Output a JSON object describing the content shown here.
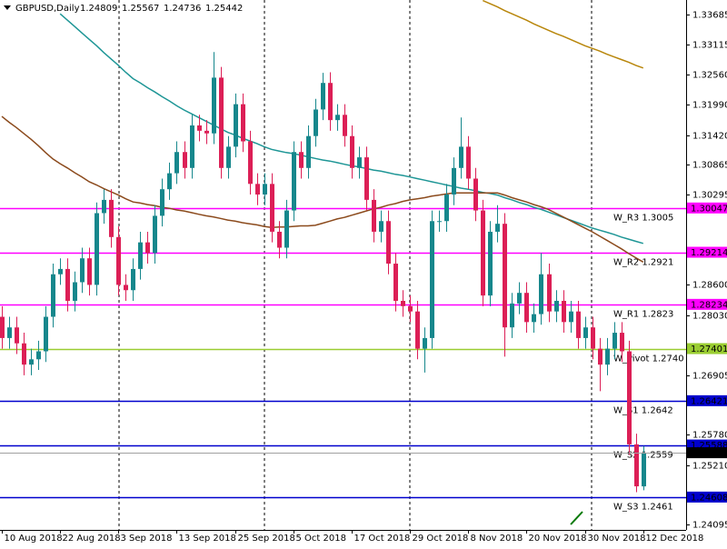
{
  "chart_data": {
    "type": "candlestick",
    "symbol": "GBPUSD,Daily",
    "categories": [
      "10 Aug 2018",
      null,
      null,
      null,
      null,
      null,
      null,
      null,
      "22 Aug 2018",
      null,
      null,
      null,
      null,
      null,
      null,
      null,
      "3 Sep 2018",
      null,
      null,
      null,
      null,
      null,
      null,
      null,
      "13 Sep 2018",
      null,
      null,
      null,
      null,
      null,
      null,
      null,
      "25 Sep 2018",
      null,
      null,
      null,
      null,
      null,
      null,
      null,
      "5 Oct 2018",
      null,
      null,
      null,
      null,
      null,
      null,
      null,
      "17 Oct 2018",
      null,
      null,
      null,
      null,
      null,
      null,
      null,
      "29 Oct 2018",
      null,
      null,
      null,
      null,
      null,
      null,
      null,
      "8 Nov 2018",
      null,
      null,
      null,
      null,
      null,
      null,
      null,
      "20 Nov 2018",
      null,
      null,
      null,
      null,
      null,
      null,
      null,
      "30 Nov 2018",
      null,
      null,
      null,
      null,
      null,
      null,
      null,
      "12 Dec 2018"
    ],
    "open": [
      1.28,
      1.276,
      1.278,
      1.275,
      1.271,
      1.272,
      1.2735,
      1.28,
      1.288,
      1.289,
      1.283,
      1.2865,
      1.291,
      1.286,
      1.2995,
      1.302,
      1.295,
      1.286,
      1.285,
      1.289,
      1.294,
      1.292,
      1.299,
      1.304,
      1.307,
      1.311,
      1.308,
      1.316,
      1.315,
      1.3145,
      1.325,
      1.308,
      1.312,
      1.32,
      1.313,
      1.305,
      1.303,
      1.305,
      1.296,
      1.293,
      1.3,
      1.311,
      1.308,
      1.314,
      1.319,
      1.324,
      1.317,
      1.318,
      1.314,
      1.308,
      1.31,
      1.302,
      1.296,
      1.298,
      1.29,
      1.283,
      1.282,
      1.281,
      1.274,
      1.276,
      1.298,
      1.298,
      1.303,
      1.308,
      1.312,
      1.306,
      1.3,
      1.284,
      1.296,
      1.2975,
      1.278,
      1.2825,
      1.2845,
      1.279,
      1.2805,
      1.288,
      1.281,
      1.283,
      1.279,
      1.281,
      1.276,
      1.278,
      1.274,
      1.271,
      1.274,
      1.277,
      1.2735,
      1.256,
      1.24809
    ],
    "high": [
      1.282,
      1.28,
      1.28,
      1.277,
      1.274,
      1.2755,
      1.282,
      1.29,
      1.291,
      1.291,
      1.2885,
      1.293,
      1.293,
      1.3015,
      1.304,
      1.304,
      1.297,
      1.288,
      1.291,
      1.296,
      1.296,
      1.301,
      1.306,
      1.309,
      1.313,
      1.313,
      1.318,
      1.318,
      1.317,
      1.3298,
      1.327,
      1.314,
      1.322,
      1.322,
      1.315,
      1.307,
      1.307,
      1.307,
      1.298,
      1.302,
      1.313,
      1.313,
      1.316,
      1.321,
      1.3259,
      1.326,
      1.32,
      1.32,
      1.316,
      1.312,
      1.312,
      1.304,
      1.3,
      1.3,
      1.292,
      1.285,
      1.284,
      1.283,
      1.278,
      1.3,
      1.3,
      1.305,
      1.31,
      1.3175,
      1.314,
      1.308,
      1.302,
      1.298,
      1.301,
      1.2995,
      1.2845,
      1.2865,
      1.2865,
      1.2825,
      1.292,
      1.29,
      1.285,
      1.285,
      1.283,
      1.283,
      1.28,
      1.28,
      1.276,
      1.276,
      1.279,
      1.279,
      1.2755,
      1.258,
      1.25567
    ],
    "low": [
      1.274,
      1.274,
      1.273,
      1.269,
      1.269,
      1.27,
      1.2715,
      1.278,
      1.286,
      1.281,
      1.281,
      1.2845,
      1.284,
      1.284,
      1.2975,
      1.293,
      1.284,
      1.283,
      1.283,
      1.287,
      1.29,
      1.29,
      1.297,
      1.302,
      1.305,
      1.306,
      1.306,
      1.313,
      1.3125,
      1.3125,
      1.306,
      1.306,
      1.31,
      1.311,
      1.303,
      1.301,
      1.301,
      1.294,
      1.291,
      1.291,
      1.298,
      1.306,
      1.306,
      1.312,
      1.317,
      1.315,
      1.315,
      1.312,
      1.306,
      1.306,
      1.3,
      1.294,
      1.294,
      1.288,
      1.281,
      1.28,
      1.279,
      1.272,
      1.2695,
      1.274,
      1.296,
      1.296,
      1.301,
      1.306,
      1.304,
      1.298,
      1.282,
      1.282,
      1.294,
      1.2725,
      1.276,
      1.2805,
      1.277,
      1.277,
      1.2785,
      1.279,
      1.279,
      1.277,
      1.277,
      1.274,
      1.274,
      1.272,
      1.266,
      1.269,
      1.272,
      1.2715,
      1.254,
      1.247,
      1.24736
    ],
    "close": [
      1.276,
      1.278,
      1.275,
      1.271,
      1.272,
      1.2735,
      1.28,
      1.288,
      1.289,
      1.283,
      1.2865,
      1.291,
      1.286,
      1.2995,
      1.302,
      1.295,
      1.286,
      1.285,
      1.289,
      1.294,
      1.292,
      1.299,
      1.304,
      1.307,
      1.311,
      1.308,
      1.316,
      1.315,
      1.3145,
      1.325,
      1.308,
      1.312,
      1.32,
      1.313,
      1.305,
      1.303,
      1.305,
      1.296,
      1.293,
      1.3,
      1.311,
      1.308,
      1.314,
      1.319,
      1.324,
      1.317,
      1.318,
      1.314,
      1.308,
      1.31,
      1.302,
      1.296,
      1.298,
      1.29,
      1.283,
      1.282,
      1.281,
      1.274,
      1.276,
      1.298,
      1.298,
      1.303,
      1.308,
      1.312,
      1.306,
      1.3,
      1.284,
      1.296,
      1.2975,
      1.278,
      1.2825,
      1.2845,
      1.279,
      1.2805,
      1.288,
      1.281,
      1.283,
      1.279,
      1.281,
      1.276,
      1.278,
      1.274,
      1.271,
      1.274,
      1.277,
      1.2735,
      1.256,
      1.2481,
      1.25442
    ],
    "up_color": "#16878c",
    "down_color": "#dc1f56",
    "series": [
      {
        "color": "#1e9696",
        "values": [
          null,
          null,
          null,
          null,
          null,
          null,
          null,
          null,
          1.337,
          1.3358,
          1.3346,
          1.3334,
          1.3322,
          1.331,
          1.3297,
          1.3285,
          1.3273,
          1.326,
          1.3248,
          1.324,
          1.3231,
          1.3223,
          1.3214,
          1.3206,
          1.3197,
          1.3189,
          1.3182,
          1.3175,
          1.3168,
          1.3161,
          1.3154,
          1.3147,
          1.3142,
          1.3136,
          1.3131,
          1.3126,
          1.312,
          1.3115,
          1.3112,
          1.3109,
          1.3107,
          1.3104,
          1.3101,
          1.3098,
          1.3095,
          1.3093,
          1.309,
          1.3087,
          1.3084,
          1.3082,
          1.3079,
          1.3076,
          1.3074,
          1.3071,
          1.3068,
          1.3066,
          1.3063,
          1.306,
          1.3057,
          1.3054,
          1.3051,
          1.3048,
          1.3045,
          1.3042,
          1.304,
          1.3037,
          1.3034,
          1.3032,
          1.3029,
          1.3024,
          1.302,
          1.3015,
          1.3011,
          1.3006,
          1.3002,
          1.2997,
          1.2992,
          1.2987,
          1.2982,
          1.2977,
          1.2972,
          1.2967,
          1.2963,
          1.2959,
          1.2955,
          1.295,
          1.2946,
          1.2942,
          1.2938
        ]
      },
      {
        "color": "#8b4a1c",
        "values": [
          1.3177,
          1.3166,
          1.3156,
          1.3145,
          1.3134,
          1.3122,
          1.3109,
          1.3097,
          1.3088,
          1.308,
          1.3071,
          1.3063,
          1.3054,
          1.3048,
          1.3041,
          1.3035,
          1.3029,
          1.3022,
          1.3016,
          1.3014,
          1.3011,
          1.3009,
          1.3006,
          1.3004,
          1.3001,
          1.2999,
          1.2996,
          1.2993,
          1.299,
          1.2988,
          1.2985,
          1.2982,
          1.298,
          1.2977,
          1.2975,
          1.2973,
          1.297,
          1.2968,
          1.2969,
          1.2969,
          1.297,
          1.2971,
          1.2971,
          1.2972,
          1.2976,
          1.298,
          1.2984,
          1.2987,
          1.2991,
          1.2995,
          1.2999,
          1.3003,
          1.3006,
          1.301,
          1.3013,
          1.3017,
          1.302,
          1.3022,
          1.3024,
          1.3027,
          1.3029,
          1.3031,
          1.3033,
          1.3033,
          1.3033,
          1.3033,
          1.3033,
          1.3033,
          1.3033,
          1.3029,
          1.3024,
          1.302,
          1.3016,
          1.3011,
          1.3007,
          1.3002,
          1.2995,
          1.2988,
          1.2981,
          1.2974,
          1.2967,
          1.296,
          1.2952,
          1.2944,
          1.2936,
          1.2928,
          1.2919,
          1.2911,
          1.2903
        ]
      },
      {
        "color": "#b8860b",
        "values": [
          null,
          null,
          null,
          null,
          null,
          null,
          null,
          null,
          null,
          null,
          null,
          null,
          null,
          null,
          null,
          null,
          null,
          null,
          null,
          null,
          null,
          null,
          null,
          null,
          null,
          null,
          null,
          null,
          null,
          null,
          null,
          null,
          null,
          null,
          null,
          null,
          null,
          null,
          null,
          null,
          null,
          null,
          null,
          null,
          null,
          null,
          null,
          null,
          null,
          null,
          null,
          null,
          null,
          null,
          null,
          null,
          null,
          null,
          null,
          null,
          null,
          null,
          null,
          null,
          null,
          null,
          1.3395,
          1.3389,
          1.3383,
          1.3376,
          1.337,
          1.3364,
          1.3358,
          1.3351,
          1.3345,
          1.3339,
          1.3333,
          1.3328,
          1.3322,
          1.3316,
          1.331,
          1.3305,
          1.33,
          1.3294,
          1.3289,
          1.3284,
          1.3279,
          1.3273,
          1.3268
        ]
      }
    ],
    "levels": [
      {
        "name": "W_R3 1.3005",
        "value": 1.30047,
        "color": "#ff00ff"
      },
      {
        "name": "W_R2 1.2921",
        "value": 1.29214,
        "color": "#ff00ff"
      },
      {
        "name": "W_R1 1.2823",
        "value": 1.28234,
        "color": "#ff00ff"
      },
      {
        "name": "W_Pivot 1.2740",
        "value": 1.27401,
        "color": "#9acd32"
      },
      {
        "name": "W_S1 1.2642",
        "value": 1.26421,
        "color": "#0000cd"
      },
      {
        "name": "W_S2 1.2559",
        "value": 1.25588,
        "color": "#0000cd"
      },
      {
        "name": "W_S3 1.2461",
        "value": 1.24608,
        "color": "#0000cd"
      }
    ],
    "ylim": [
      1.2399,
      1.3396
    ],
    "yticks": [
      1.33685,
      1.33115,
      {
        "value": 1.3256,
        "label": "1.32560"
      },
      {
        "value": 1.3199,
        "label": "1.31990"
      },
      {
        "value": 1.3142,
        "label": "1.31420"
      },
      1.30865,
      1.30295,
      {
        "value": 1.286,
        "label": "1.28600"
      },
      {
        "value": 1.2803,
        "label": "1.28030"
      },
      1.26905,
      {
        "value": 1.2578,
        "label": "1.25780"
      },
      {
        "value": 1.2521,
        "label": "1.25210"
      },
      1.24095
    ]
  }
}
